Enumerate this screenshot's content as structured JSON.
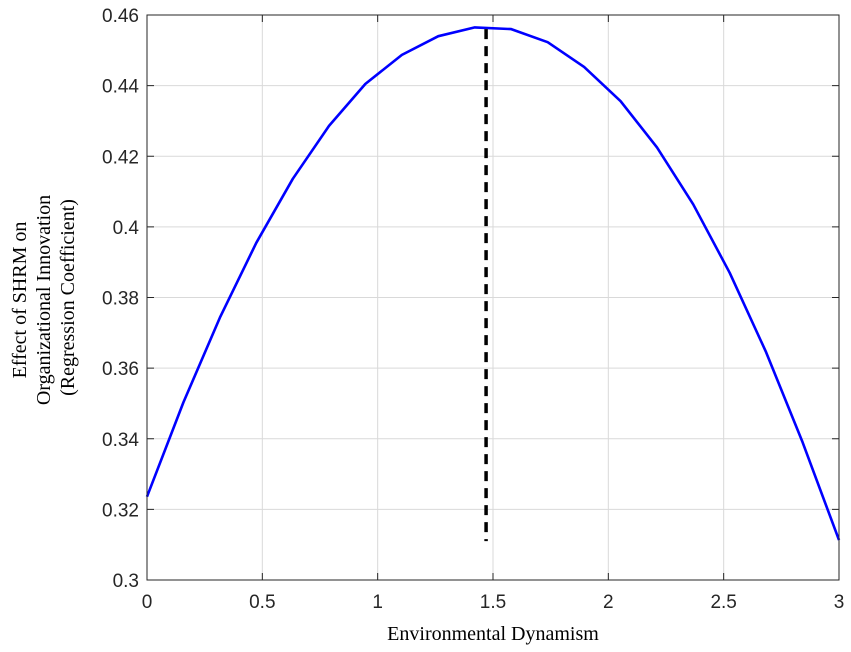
{
  "chart_data": {
    "type": "line",
    "xlabel": "Environmental Dynamism",
    "ylabel_lines": [
      "Effect of SHRM on",
      "Organizational Innovation",
      "(Regression Coefficient)"
    ],
    "xlim": [
      0,
      3
    ],
    "ylim": [
      0.3,
      0.46
    ],
    "x_ticks": [
      0,
      0.5,
      1,
      1.5,
      2,
      2.5,
      3
    ],
    "x_tick_labels": [
      "0",
      "0.5",
      "1",
      "1.5",
      "2",
      "2.5",
      "3"
    ],
    "y_ticks": [
      0.3,
      0.32,
      0.34,
      0.36,
      0.38,
      0.4,
      0.42,
      0.44,
      0.46
    ],
    "y_tick_labels": [
      "0.3",
      "0.32",
      "0.34",
      "0.36",
      "0.38",
      "0.4",
      "0.42",
      "0.44",
      "0.46"
    ],
    "grid": true,
    "series": [
      {
        "color": "#0000ff",
        "x": [
          0,
          0.158,
          0.316,
          0.474,
          0.632,
          0.789,
          0.947,
          1.105,
          1.263,
          1.421,
          1.579,
          1.737,
          1.895,
          2.053,
          2.211,
          2.368,
          2.526,
          2.684,
          2.842,
          3.0
        ],
        "y": [
          0.3236,
          0.3503,
          0.3743,
          0.3955,
          0.4136,
          0.4286,
          0.4405,
          0.4487,
          0.454,
          0.4565,
          0.456,
          0.4523,
          0.4453,
          0.4356,
          0.4225,
          0.4064,
          0.387,
          0.3645,
          0.339,
          0.3113
        ]
      }
    ],
    "reference_line": {
      "x": 1.47,
      "y_range": [
        0.311,
        0.456
      ],
      "color": "#000000",
      "style": "dashed"
    }
  }
}
